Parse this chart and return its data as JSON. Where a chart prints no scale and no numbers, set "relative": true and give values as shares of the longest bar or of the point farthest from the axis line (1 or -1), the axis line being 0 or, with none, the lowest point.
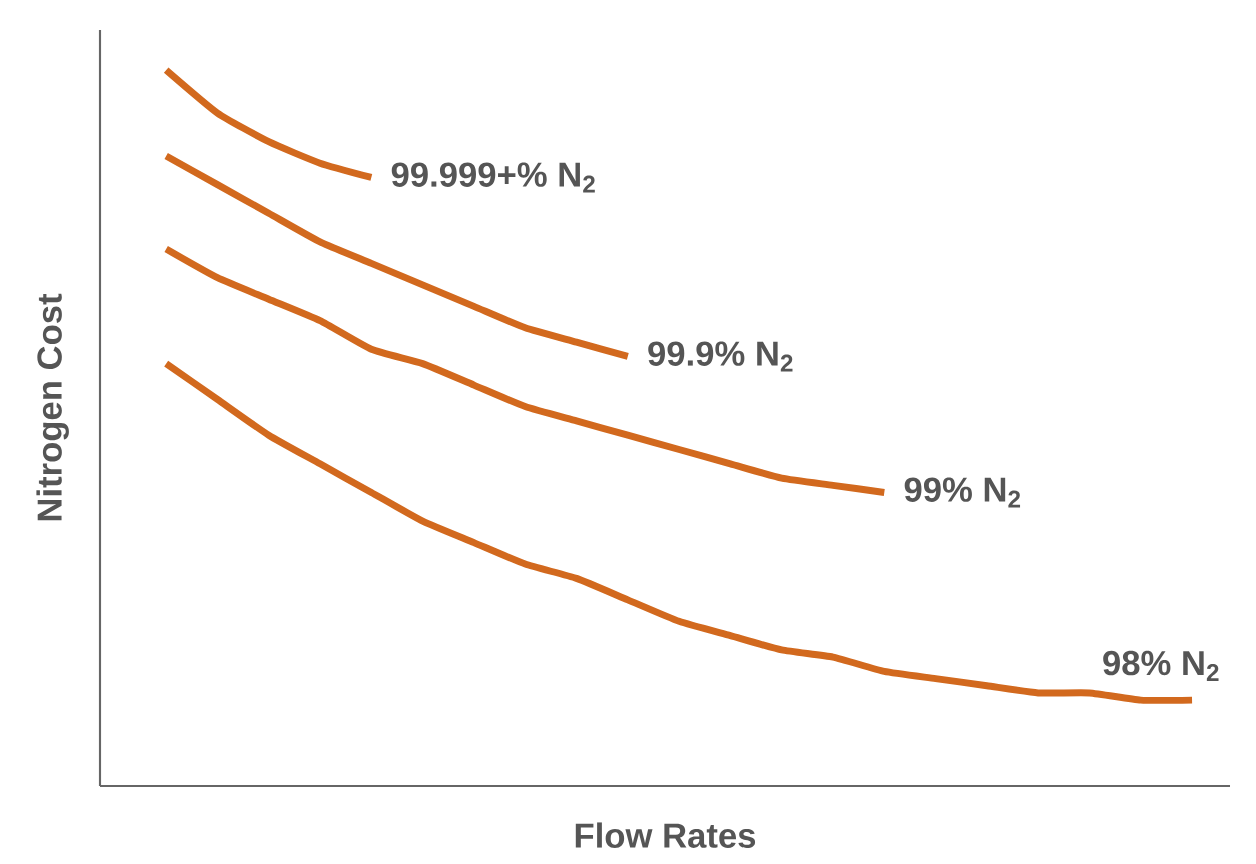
{
  "chart_data": {
    "type": "line",
    "relative": true,
    "xlabel": "Flow Rates",
    "ylabel": "Nitrogen Cost",
    "marker": "none",
    "line_style": "solid",
    "categories": [
      null,
      null,
      null,
      null,
      null,
      null,
      null,
      null,
      null,
      null,
      null,
      null,
      null,
      null,
      null,
      null,
      null,
      null,
      null,
      null,
      null
    ],
    "series": [
      {
        "name": "99.999+% N$_{2}$",
        "color": "#d2691e",
        "values": [
          1.0,
          0.94,
          0.9,
          0.87,
          0.85,
          null,
          null,
          null,
          null,
          null,
          null,
          null,
          null,
          null,
          null,
          null,
          null,
          null,
          null,
          null,
          null
        ]
      },
      {
        "name": "99.9% N$_{2}$",
        "color": "#d2691e",
        "values": [
          0.88,
          0.84,
          0.8,
          0.76,
          0.73,
          0.7,
          0.67,
          0.64,
          0.62,
          0.6,
          null,
          null,
          null,
          null,
          null,
          null,
          null,
          null,
          null,
          null,
          null
        ]
      },
      {
        "name": "99% N$_{2}$",
        "color": "#d2691e",
        "values": [
          0.75,
          0.71,
          0.68,
          0.65,
          0.61,
          0.59,
          0.56,
          0.53,
          0.51,
          0.49,
          0.47,
          0.45,
          0.43,
          0.42,
          0.41,
          null,
          null,
          null,
          null,
          null,
          null
        ]
      },
      {
        "name": "98% N$_{2}$",
        "color": "#d2691e",
        "values": [
          0.59,
          0.54,
          0.49,
          0.45,
          0.41,
          0.37,
          0.34,
          0.31,
          0.29,
          0.26,
          0.23,
          0.21,
          0.19,
          0.18,
          0.16,
          0.15,
          0.14,
          0.13,
          0.13,
          0.12,
          0.12
        ]
      }
    ]
  }
}
